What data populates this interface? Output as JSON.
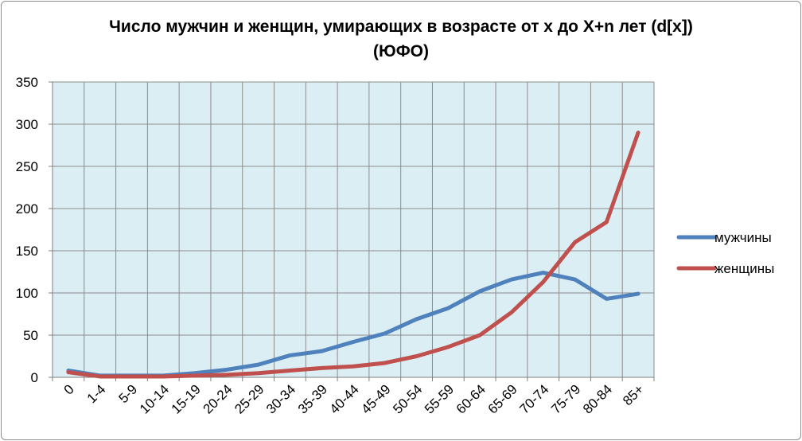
{
  "chart_data": {
    "type": "line",
    "title_line1": "Число мужчин и женщин, умирающих в возрасте от х до X+n лет  (d[x])",
    "title_line2": "(ЮФО)",
    "categories": [
      "0",
      "1-4",
      "5-9",
      "10-14",
      "15-19",
      "20-24",
      "25-29",
      "30-34",
      "35-39",
      "40-44",
      "45-49",
      "50-54",
      "55-59",
      "60-64",
      "65-69",
      "70-74",
      "75-79",
      "80-84",
      "85+"
    ],
    "series": [
      {
        "name": "мужчины",
        "color": "#4f81bd",
        "values": [
          8,
          2,
          2,
          2,
          5,
          9,
          15,
          26,
          31,
          42,
          52,
          69,
          82,
          102,
          116,
          124,
          116,
          93,
          99
        ]
      },
      {
        "name": "женщины",
        "color": "#c0504d",
        "values": [
          6,
          1,
          1,
          1,
          2,
          3,
          5,
          8,
          11,
          13,
          17,
          25,
          36,
          50,
          77,
          113,
          160,
          184,
          290
        ]
      }
    ],
    "ylim": [
      0,
      350
    ],
    "yticks": [
      "0",
      "50",
      "100",
      "150",
      "200",
      "250",
      "300",
      "350"
    ],
    "grid": true,
    "plot_background": "#dbeef3",
    "legend_position": "right"
  }
}
